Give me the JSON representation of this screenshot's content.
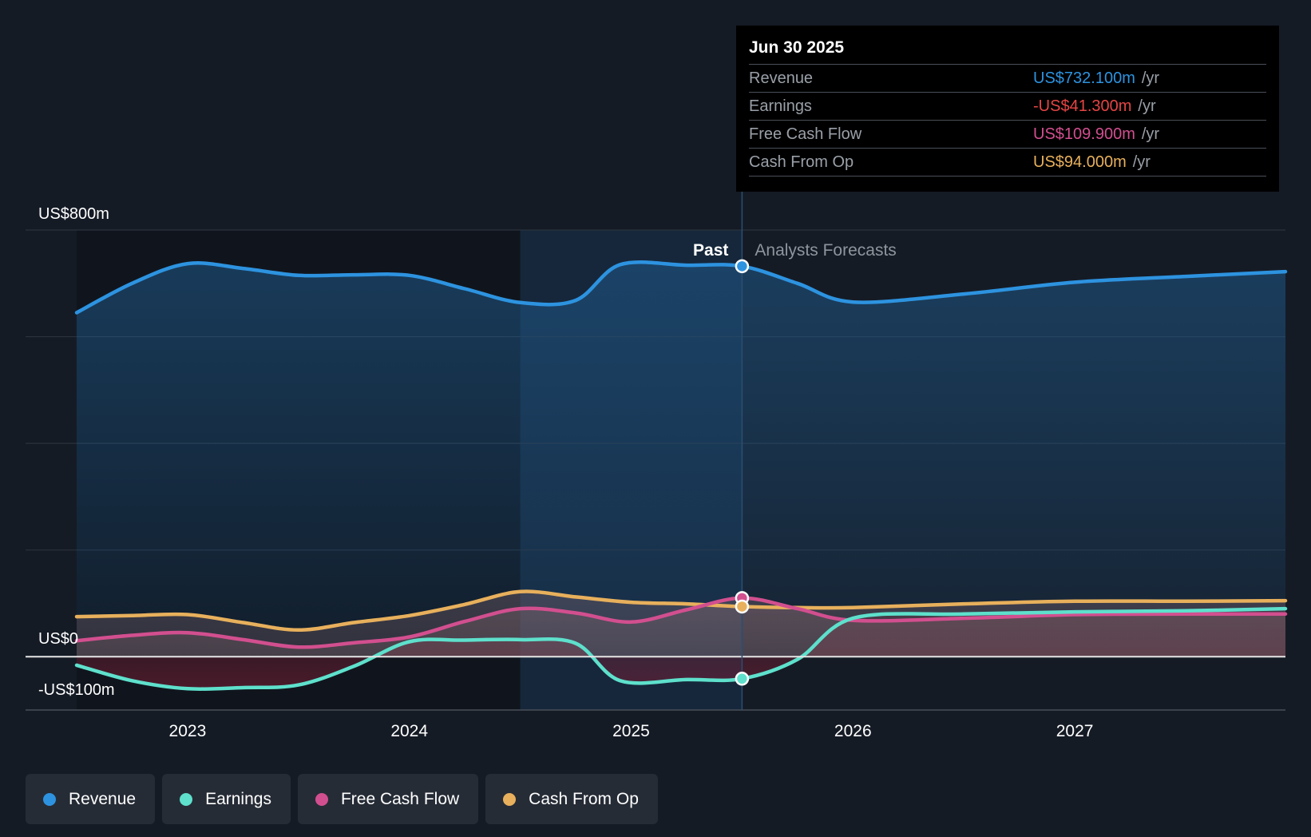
{
  "chart_data": {
    "type": "line",
    "y_unit": "US$ m",
    "ylim": [
      -100,
      800
    ],
    "y_tick_labels": [
      {
        "value": 800,
        "label": "US$800m"
      },
      {
        "value": 0,
        "label": "US$0"
      },
      {
        "value": -100,
        "label": "-US$100m"
      }
    ],
    "x_ticks": [
      2023,
      2024,
      2025,
      2026,
      2027
    ],
    "x_range": [
      2022.5,
      2027.95
    ],
    "past_label": "Past",
    "forecast_label": "Analysts Forecasts",
    "past_end": 2025.5,
    "series": [
      {
        "name": "Revenue",
        "color": "#2d93e0",
        "points": [
          [
            2022.5,
            645
          ],
          [
            2022.75,
            700
          ],
          [
            2023.0,
            737
          ],
          [
            2023.25,
            728
          ],
          [
            2023.5,
            715
          ],
          [
            2023.75,
            716
          ],
          [
            2024.0,
            715
          ],
          [
            2024.25,
            690
          ],
          [
            2024.5,
            664
          ],
          [
            2024.75,
            668
          ],
          [
            2024.95,
            735
          ],
          [
            2025.25,
            734
          ],
          [
            2025.5,
            732.1
          ],
          [
            2025.75,
            700
          ],
          [
            2026.0,
            665
          ],
          [
            2026.5,
            680
          ],
          [
            2027.0,
            702
          ],
          [
            2027.5,
            713
          ],
          [
            2027.95,
            722
          ]
        ]
      },
      {
        "name": "Earnings",
        "color": "#5ee0cc",
        "points": [
          [
            2022.5,
            -16
          ],
          [
            2022.75,
            -45
          ],
          [
            2023.0,
            -60
          ],
          [
            2023.25,
            -58
          ],
          [
            2023.5,
            -53
          ],
          [
            2023.75,
            -18
          ],
          [
            2024.0,
            28
          ],
          [
            2024.25,
            31
          ],
          [
            2024.5,
            32
          ],
          [
            2024.75,
            25
          ],
          [
            2024.95,
            -45
          ],
          [
            2025.25,
            -43
          ],
          [
            2025.5,
            -41.3
          ],
          [
            2025.75,
            -5
          ],
          [
            2026.0,
            72
          ],
          [
            2026.5,
            80
          ],
          [
            2027.0,
            84
          ],
          [
            2027.5,
            86
          ],
          [
            2027.95,
            90
          ]
        ]
      },
      {
        "name": "Free Cash Flow",
        "color": "#d24f8f",
        "points": [
          [
            2022.5,
            30
          ],
          [
            2022.75,
            40
          ],
          [
            2023.0,
            45
          ],
          [
            2023.25,
            32
          ],
          [
            2023.5,
            18
          ],
          [
            2023.75,
            26
          ],
          [
            2024.0,
            37
          ],
          [
            2024.25,
            66
          ],
          [
            2024.5,
            90
          ],
          [
            2024.75,
            82
          ],
          [
            2025.0,
            65
          ],
          [
            2025.25,
            88
          ],
          [
            2025.5,
            109.9
          ],
          [
            2025.75,
            90
          ],
          [
            2026.0,
            68
          ],
          [
            2026.5,
            72
          ],
          [
            2027.0,
            79
          ],
          [
            2027.5,
            80
          ],
          [
            2027.95,
            80
          ]
        ]
      },
      {
        "name": "Cash From Op",
        "color": "#e8b05c",
        "points": [
          [
            2022.5,
            75
          ],
          [
            2022.75,
            77
          ],
          [
            2023.0,
            79
          ],
          [
            2023.25,
            64
          ],
          [
            2023.5,
            50
          ],
          [
            2023.75,
            64
          ],
          [
            2024.0,
            77
          ],
          [
            2024.25,
            98
          ],
          [
            2024.5,
            122
          ],
          [
            2024.75,
            112
          ],
          [
            2025.0,
            102
          ],
          [
            2025.25,
            99
          ],
          [
            2025.5,
            94.0
          ],
          [
            2025.75,
            92
          ],
          [
            2026.0,
            92
          ],
          [
            2026.5,
            99
          ],
          [
            2027.0,
            104
          ],
          [
            2027.5,
            104
          ],
          [
            2027.95,
            105
          ]
        ]
      }
    ]
  },
  "tooltip": {
    "date": "Jun 30 2025",
    "rows": [
      {
        "label": "Revenue",
        "value": "US$732.100m",
        "unit": "/yr",
        "color": "#2d93e0"
      },
      {
        "label": "Earnings",
        "value": "-US$41.300m",
        "unit": "/yr",
        "color": "#e64545"
      },
      {
        "label": "Free Cash Flow",
        "value": "US$109.900m",
        "unit": "/yr",
        "color": "#d24f8f"
      },
      {
        "label": "Cash From Op",
        "value": "US$94.000m",
        "unit": "/yr",
        "color": "#e8b05c"
      }
    ]
  },
  "legend": [
    {
      "label": "Revenue",
      "color": "#2d93e0"
    },
    {
      "label": "Earnings",
      "color": "#5ee0cc"
    },
    {
      "label": "Free Cash Flow",
      "color": "#d24f8f"
    },
    {
      "label": "Cash From Op",
      "color": "#e8b05c"
    }
  ]
}
